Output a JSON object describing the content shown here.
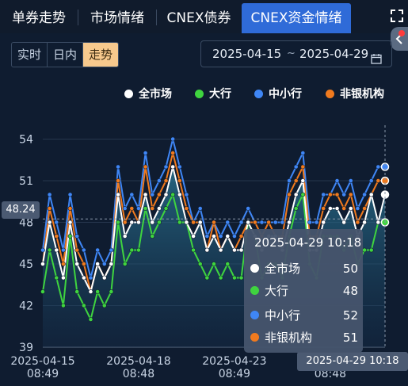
{
  "tabs": [
    {
      "label": "单券走势",
      "active": false
    },
    {
      "label": "市场情绪",
      "active": false
    },
    {
      "label": "CNEX债券",
      "active": false
    },
    {
      "label": "CNEX资金情绪",
      "active": true
    }
  ],
  "modes": [
    {
      "label": "实时",
      "active": false
    },
    {
      "label": "日内",
      "active": false
    },
    {
      "label": "走势",
      "active": true
    }
  ],
  "date_range": {
    "start": "2025-04-15",
    "separator": "~",
    "end": "2025-04-29"
  },
  "icons": {
    "expand": "expand-icon",
    "calendar": "calendar-icon",
    "side_handle": "chevron-left-icon"
  },
  "colors": {
    "accent_tab": "#2f6bd8",
    "active_mode": "#f7c98d",
    "background": "#0f1c30"
  },
  "legend": [
    {
      "name": "全市场",
      "color": "#ffffff"
    },
    {
      "name": "大行",
      "color": "#3fd43f"
    },
    {
      "name": "中小行",
      "color": "#3f86f5"
    },
    {
      "name": "非银机构",
      "color": "#f07a1e"
    }
  ],
  "tooltip": {
    "title": "2025-04-29 10:18",
    "rows": [
      {
        "name": "全市场",
        "value": "50",
        "color": "#ffffff"
      },
      {
        "name": "大行",
        "value": "48",
        "color": "#3fd43f"
      },
      {
        "name": "中小行",
        "value": "52",
        "color": "#3f86f5"
      },
      {
        "name": "非银机构",
        "value": "51",
        "color": "#f07a1e"
      }
    ]
  },
  "crosshair": {
    "y_value": "48.24",
    "x_value": "2025-04-29 10:18"
  },
  "chart_data": {
    "type": "line",
    "ylim": [
      39,
      55
    ],
    "yticks": [
      39,
      42,
      45,
      48,
      51,
      54
    ],
    "x_tick_labels": [
      {
        "date": "2025-04-15",
        "time": "08:49",
        "index": 0
      },
      {
        "date": "2025-04-18",
        "time": "08:48",
        "index": 14
      },
      {
        "date": "2025-04-23",
        "time": "08:49",
        "index": 28
      },
      {
        "date": "2025-04-25",
        "time": "08:48",
        "index": 42
      }
    ],
    "grid": true,
    "legend_position": "top",
    "series": [
      {
        "name": "全市场",
        "color": "#ffffff",
        "fill": true,
        "values": [
          45,
          48,
          46,
          44,
          48,
          45,
          44,
          43,
          45,
          44,
          45,
          50,
          47,
          48,
          48,
          50,
          48,
          49,
          50,
          52,
          50,
          48,
          47,
          48,
          46,
          47,
          46,
          47,
          46,
          46,
          48,
          47,
          46,
          47,
          47,
          46,
          48,
          50,
          51,
          46,
          46,
          48,
          49,
          49,
          48,
          49,
          47,
          48,
          50,
          48,
          50
        ]
      },
      {
        "name": "大行",
        "color": "#3fd43f",
        "values": [
          43,
          46,
          44,
          42,
          47,
          43,
          42,
          41,
          43,
          42,
          43,
          48,
          45,
          46,
          46,
          49,
          47,
          48,
          49,
          50,
          48,
          48,
          46,
          45,
          44,
          45,
          44,
          45,
          44,
          44,
          48,
          47,
          44,
          45,
          45,
          44,
          47,
          49,
          50,
          45,
          44,
          47,
          47,
          47,
          46,
          47,
          45,
          46,
          46,
          48,
          48
        ]
      },
      {
        "name": "中小行",
        "color": "#3f86f5",
        "values": [
          46,
          50,
          48,
          46,
          50,
          47,
          46,
          44,
          46,
          45,
          46,
          52,
          49,
          50,
          49,
          53,
          50,
          51,
          52,
          54,
          52,
          50,
          48,
          49,
          47,
          48,
          47,
          48,
          47,
          48,
          49,
          48,
          48,
          48,
          48,
          48,
          51,
          52,
          53,
          48,
          48,
          50,
          50,
          51,
          50,
          51,
          49,
          50,
          51,
          52,
          52
        ]
      },
      {
        "name": "非银机构",
        "color": "#f07a1e",
        "values": [
          45,
          49,
          47,
          45,
          49,
          46,
          45,
          43,
          45,
          44,
          45,
          51,
          48,
          49,
          48,
          52,
          49,
          50,
          51,
          53,
          51,
          49,
          48,
          48,
          46,
          48,
          46,
          47,
          46,
          47,
          48,
          48,
          47,
          48,
          47,
          47,
          50,
          51,
          52,
          47,
          47,
          49,
          50,
          50,
          49,
          50,
          48,
          49,
          50,
          51,
          51
        ]
      }
    ]
  }
}
